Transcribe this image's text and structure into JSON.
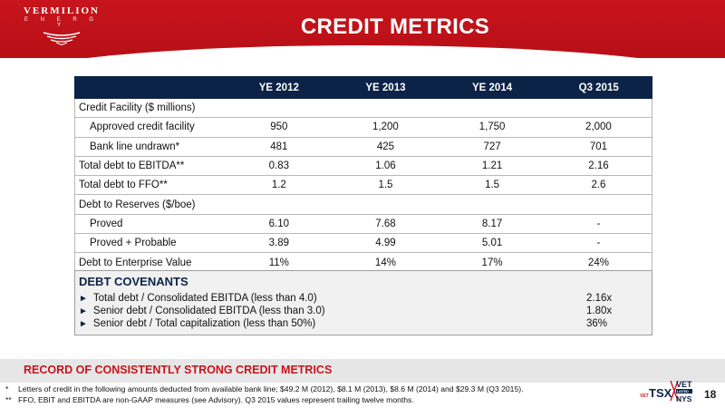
{
  "brand": {
    "name": "VERMILION",
    "sub": "E N E R G Y",
    "red": "#c8141c",
    "navy": "#0c2347"
  },
  "title": "CREDIT METRICS",
  "table": {
    "columns": [
      "",
      "YE 2012",
      "YE 2013",
      "YE 2014",
      "Q3 2015"
    ],
    "rows": [
      {
        "label": "Credit Facility ($ millions)",
        "indent": false,
        "values": [
          "",
          "",
          "",
          ""
        ]
      },
      {
        "label": "Approved credit facility",
        "indent": true,
        "values": [
          "950",
          "1,200",
          "1,750",
          "2,000"
        ]
      },
      {
        "label": "Bank line undrawn*",
        "indent": true,
        "values": [
          "481",
          "425",
          "727",
          "701"
        ]
      },
      {
        "label": "Total debt to EBITDA**",
        "indent": false,
        "values": [
          "0.83",
          "1.06",
          "1.21",
          "2.16"
        ]
      },
      {
        "label": "Total debt to FFO**",
        "indent": false,
        "values": [
          "1.2",
          "1.5",
          "1.5",
          "2.6"
        ]
      },
      {
        "label": "Debt to Reserves ($/boe)",
        "indent": false,
        "values": [
          "",
          "",
          "",
          ""
        ]
      },
      {
        "label": "Proved",
        "indent": true,
        "values": [
          "6.10",
          "7.68",
          "8.17",
          "-"
        ]
      },
      {
        "label": "Proved + Probable",
        "indent": true,
        "values": [
          "3.89",
          "4.99",
          "5.01",
          "-"
        ]
      },
      {
        "label": "Debt to Enterprise Value",
        "indent": false,
        "values": [
          "11%",
          "14%",
          "17%",
          "24%"
        ]
      }
    ]
  },
  "covenants": {
    "title": "DEBT COVENANTS",
    "items": [
      {
        "label": "Total debt / Consolidated EBITDA (less than 4.0)",
        "value": "2.16x"
      },
      {
        "label": "Senior debt / Consolidated EBITDA (less than 3.0)",
        "value": "1.80x"
      },
      {
        "label": "Senior debt / Total capitalization (less than 50%)",
        "value": "36%"
      }
    ]
  },
  "band_text": "RECORD OF CONSISTENTLY STRONG CREDIT METRICS",
  "footnotes": [
    {
      "mark": "*",
      "text": "Letters of credit in the following amounts deducted from available bank line; $49.2 M (2012), $8.1 M (2013), $8.6 M (2014) and $29.3 M (Q3 2015)."
    },
    {
      "mark": "**",
      "text": "FFO, EBIT and EBITDA are non-GAAP measures (see Advisory).   Q3 2015 values represent trailing twelve months."
    }
  ],
  "ticker": {
    "symbol": "VET",
    "exchange1": "TSX",
    "exchange2": "NYSE",
    "listed": "LISTED"
  },
  "page_number": "18"
}
